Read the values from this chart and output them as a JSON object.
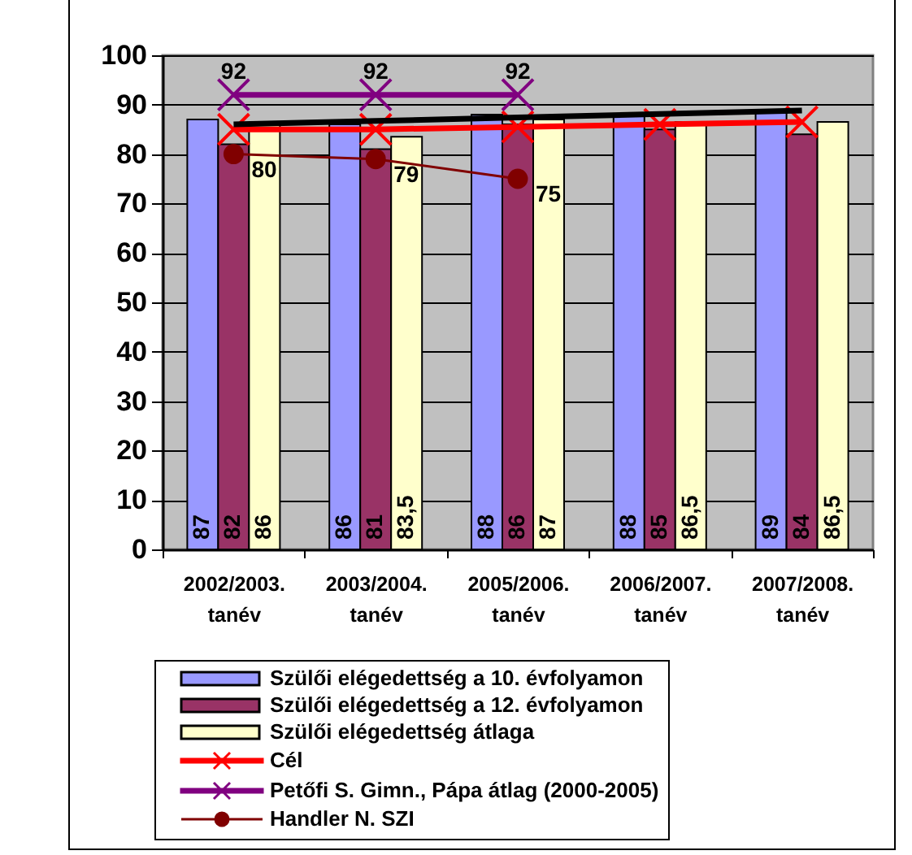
{
  "chart_data": {
    "type": "bar",
    "categories": [
      "2002/2003. tanév",
      "2003/2004. tanév",
      "2005/2006. tanév",
      "2006/2007. tanév",
      "2007/2008. tanév"
    ],
    "series": [
      {
        "name": "Szülői elégedettség a 10. évfolyamon",
        "color": "#9999ff",
        "values": [
          87,
          86,
          88,
          88,
          89
        ],
        "value_labels": [
          "87",
          "86",
          "88",
          "88",
          "89"
        ]
      },
      {
        "name": "Szülői elégedettség a 12. évfolyamon",
        "color": "#993366",
        "values": [
          82,
          81,
          86,
          85,
          84
        ],
        "value_labels": [
          "82",
          "81",
          "86",
          "85",
          "84"
        ]
      },
      {
        "name": "Szülői elégedettség átlaga",
        "color": "#ffffcc",
        "values": [
          86,
          83.5,
          87,
          86.5,
          86.5
        ],
        "value_labels": [
          "86",
          "83,5",
          "87",
          "86,5",
          "86,5"
        ]
      },
      {
        "name": "Cél",
        "type": "line",
        "color": "#ff0000",
        "marker": "cross",
        "values": [
          85,
          85,
          85.5,
          86,
          86.5
        ]
      },
      {
        "name": "Petőfi S. Gimn., Pápa átlag (2000-2005)",
        "type": "line",
        "color": "#800080",
        "marker": "cross",
        "values": [
          92,
          92,
          92,
          null,
          null
        ],
        "value_labels": [
          "92",
          "92",
          "92",
          null,
          null
        ]
      },
      {
        "name": "Handler N. SZI",
        "type": "line",
        "color": "#800000",
        "marker": "circle",
        "values": [
          80,
          79,
          75,
          null,
          null
        ],
        "value_labels": [
          "80",
          "79",
          "75",
          null,
          null
        ]
      },
      {
        "type": "line",
        "color": "#000000",
        "values": [
          86,
          86.7,
          87.4,
          88.1,
          88.8
        ]
      }
    ],
    "ylim": [
      0,
      100
    ],
    "yticks": [
      0,
      10,
      20,
      30,
      40,
      50,
      60,
      70,
      80,
      90,
      100
    ],
    "grid": "y",
    "legend": "bottom"
  }
}
